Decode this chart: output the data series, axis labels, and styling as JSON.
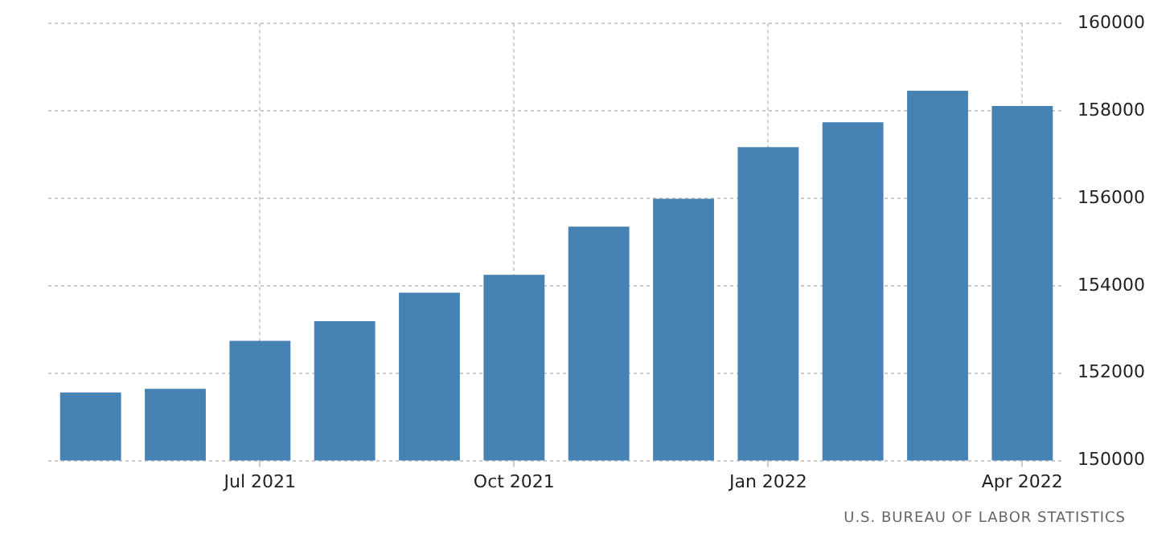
{
  "chart_data": {
    "type": "bar",
    "categories": [
      null,
      null,
      "Jul 2021",
      null,
      null,
      "Oct 2021",
      null,
      null,
      "Jan 2022",
      null,
      null,
      "Apr 2022"
    ],
    "values": [
      151560,
      151640,
      152740,
      153190,
      153840,
      154250,
      155350,
      155990,
      157170,
      157740,
      158460,
      158110
    ],
    "color": "#4682b4",
    "ylim": [
      150000,
      160000
    ],
    "yticks": [
      150000,
      152000,
      154000,
      156000,
      158000,
      160000
    ],
    "grid": true,
    "legend": false,
    "annotations": [
      "U.S. BUREAU OF LABOR STATISTICS"
    ]
  }
}
